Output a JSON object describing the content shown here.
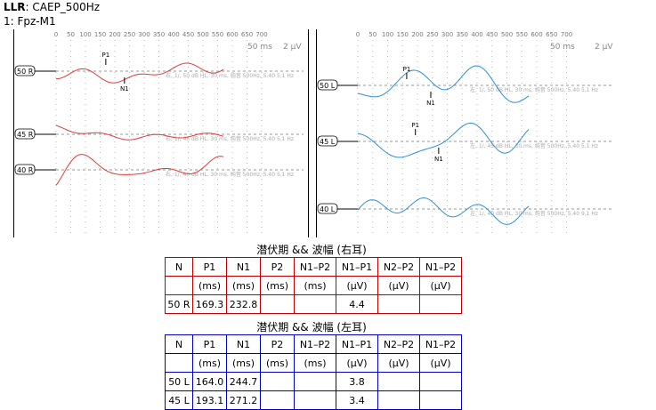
{
  "header": {
    "prefix": "LLR",
    "program": ": CAEP_500Hz",
    "channel": "1: Fpz-M1"
  },
  "colors": {
    "right_ear": "#e03a3a",
    "left_ear": "#2f8fd0",
    "right_table": "#c00000",
    "left_table": "#0000c0"
  },
  "panels": {
    "right": {
      "ticks": [
        0,
        50,
        100,
        150,
        200,
        250,
        300,
        350,
        400,
        450,
        500,
        550,
        600,
        650,
        700
      ],
      "scale_time": "50 ms",
      "scale_amp": "2 μV",
      "traces": [
        {
          "label": "50 R",
          "info": "右, 1/, 50 dB HL, 30 ms, 纯音 500Hz, 5.40 5,1 Hz",
          "markers": [
            {
              "name": "P1",
              "ms": 169.3
            },
            {
              "name": "N1",
              "ms": 232.8
            }
          ]
        },
        {
          "label": "45 R",
          "info": "右, 1/, 45 dB HL, 30 ms, 纯音 500Hz, 5.40 5,1 Hz",
          "markers": []
        },
        {
          "label": "40 R",
          "info": "右, 1/, 40 dB HL, 30 ms, 纯音 500Hz, 5.40 5,1 Hz",
          "markers": []
        }
      ]
    },
    "left": {
      "ticks": [
        0,
        50,
        100,
        150,
        200,
        250,
        300,
        350,
        400,
        450,
        500,
        550,
        600,
        650,
        700
      ],
      "scale_time": "50 ms",
      "scale_amp": "2 μV",
      "traces": [
        {
          "label": "50 L",
          "info": "左, 1/, 50 dB HL, 30 ms, 纯音 500Hz, 5.40 5,1 Hz",
          "markers": [
            {
              "name": "P1",
              "ms": 164.0
            },
            {
              "name": "N1",
              "ms": 244.7
            }
          ]
        },
        {
          "label": "45 L",
          "info": "左, 1/, 45 dB HL, 30 ms, 纯音 500Hz, 5.40 5,1 Hz",
          "markers": [
            {
              "name": "P1",
              "ms": 193.1
            },
            {
              "name": "N1",
              "ms": 271.2
            }
          ]
        },
        {
          "label": "40 L",
          "info": "左, 1/, 40 dB HL, 30 ms, 纯音 500Hz, 5.40 9,1 Hz",
          "markers": []
        }
      ]
    }
  },
  "tables": {
    "right": {
      "caption": "潜伏期 && 波幅 (右耳)",
      "headers": [
        "N",
        "P1",
        "N1",
        "P2",
        "N1–P2",
        "N1–P1",
        "N2–P2",
        "N1–P2"
      ],
      "units": [
        "",
        "(ms)",
        "(ms)",
        "(ms)",
        "(ms)",
        "(μV)",
        "(μV)",
        "(μV)"
      ],
      "rows": [
        [
          "50 R",
          "169.3",
          "232.8",
          "",
          "",
          "4.4",
          "",
          ""
        ]
      ]
    },
    "left": {
      "caption": "潜伏期 && 波幅 (左耳)",
      "headers": [
        "N",
        "P1",
        "N1",
        "P2",
        "N1–P2",
        "N1–P1",
        "N2–P2",
        "N1–P2"
      ],
      "units": [
        "",
        "(ms)",
        "(ms)",
        "(ms)",
        "(ms)",
        "(μV)",
        "(μV)",
        "(μV)"
      ],
      "rows": [
        [
          "50 L",
          "164.0",
          "244.7",
          "",
          "",
          "3.8",
          "",
          ""
        ],
        [
          "45 L",
          "193.1",
          "271.2",
          "",
          "",
          "3.4",
          "",
          ""
        ]
      ]
    }
  }
}
